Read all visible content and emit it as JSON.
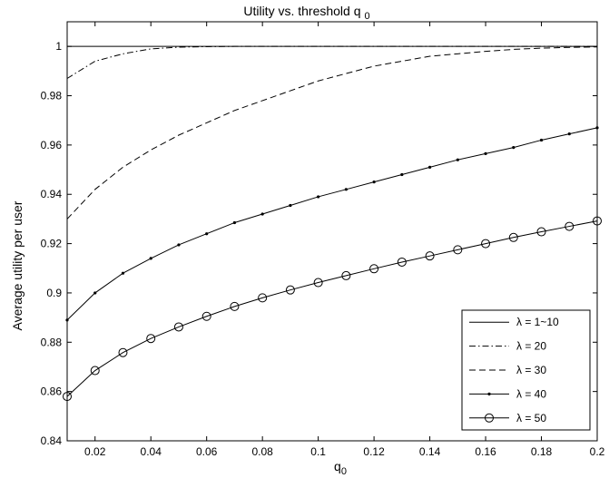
{
  "chart_data": {
    "type": "line",
    "title_main": "Utility vs. threshold q",
    "title_sub": "0",
    "xlabel_main": "q",
    "xlabel_sub": "0",
    "ylabel": "Average utility per user",
    "xlim": [
      0.01,
      0.2
    ],
    "ylim": [
      0.84,
      1.01
    ],
    "x_ticks": [
      0.02,
      0.04,
      0.06,
      0.08,
      0.1,
      0.12,
      0.14,
      0.16,
      0.18,
      0.2
    ],
    "x_tick_labels": [
      "0.02",
      "0.04",
      "0.06",
      "0.08",
      "0.1",
      "0.12",
      "0.14",
      "0.16",
      "0.18",
      "0.2"
    ],
    "y_ticks": [
      0.84,
      0.86,
      0.88,
      0.9,
      0.92,
      0.94,
      0.96,
      0.98,
      1.0
    ],
    "y_tick_labels": [
      "0.84",
      "0.86",
      "0.88",
      "0.9",
      "0.92",
      "0.94",
      "0.96",
      "0.98",
      "1"
    ],
    "grid": false,
    "legend_position": "bottom-right",
    "x": [
      0.01,
      0.02,
      0.03,
      0.04,
      0.05,
      0.06,
      0.07,
      0.08,
      0.09,
      0.1,
      0.11,
      0.12,
      0.13,
      0.14,
      0.15,
      0.16,
      0.17,
      0.18,
      0.19,
      0.2
    ],
    "series": [
      {
        "name": "λ = 1~10",
        "style": "solid",
        "marker": "none",
        "values": [
          1.0,
          1.0,
          1.0,
          1.0,
          1.0,
          1.0,
          1.0,
          1.0,
          1.0,
          1.0,
          1.0,
          1.0,
          1.0,
          1.0,
          1.0,
          1.0,
          1.0,
          1.0,
          1.0,
          1.0
        ]
      },
      {
        "name": "λ = 20",
        "style": "dashdot",
        "marker": "none",
        "values": [
          0.987,
          0.994,
          0.997,
          0.999,
          0.9997,
          0.9999,
          1.0,
          1.0,
          1.0,
          1.0,
          1.0,
          1.0,
          1.0,
          1.0,
          1.0,
          1.0,
          1.0,
          1.0,
          1.0,
          1.0
        ]
      },
      {
        "name": "λ = 30",
        "style": "dashed",
        "marker": "none",
        "values": [
          0.93,
          0.942,
          0.951,
          0.958,
          0.964,
          0.969,
          0.974,
          0.978,
          0.982,
          0.986,
          0.989,
          0.992,
          0.994,
          0.996,
          0.997,
          0.998,
          0.9988,
          0.9993,
          0.9996,
          0.9998
        ]
      },
      {
        "name": "λ = 40",
        "style": "solid",
        "marker": "dot",
        "values": [
          0.889,
          0.9,
          0.908,
          0.914,
          0.9195,
          0.924,
          0.9285,
          0.932,
          0.9355,
          0.939,
          0.942,
          0.945,
          0.948,
          0.951,
          0.954,
          0.9565,
          0.959,
          0.962,
          0.9645,
          0.967
        ]
      },
      {
        "name": "λ = 50",
        "style": "solid",
        "marker": "circle",
        "values": [
          0.858,
          0.8685,
          0.8758,
          0.8815,
          0.8862,
          0.8905,
          0.8945,
          0.898,
          0.9012,
          0.9042,
          0.907,
          0.9098,
          0.9125,
          0.915,
          0.9175,
          0.92,
          0.9225,
          0.9248,
          0.927,
          0.9292
        ]
      }
    ]
  }
}
